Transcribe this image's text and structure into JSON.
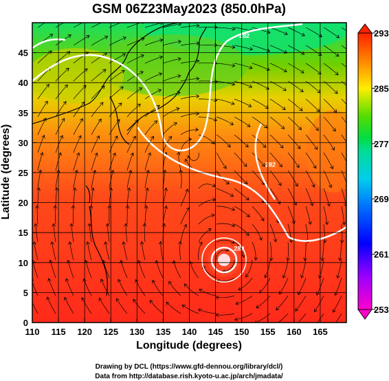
{
  "title": "GSM 06Z23May2023 (850.0hPa)",
  "map": {
    "xlabel": "Longitude (degrees)",
    "ylabel": "Latitude  (degrees)",
    "lon_range": [
      110,
      170
    ],
    "lat_range": [
      0,
      50
    ],
    "lon_ticks": [
      110,
      115,
      120,
      125,
      130,
      135,
      140,
      145,
      150,
      155,
      160,
      165
    ],
    "lat_ticks": [
      0,
      5,
      10,
      15,
      20,
      25,
      30,
      35,
      40,
      45
    ],
    "grid": true,
    "field": "850 hPa temperature (shaded) with streamlines and contours",
    "contour_labels": [
      {
        "text": "282",
        "lon": 150.5,
        "lat": 47.5
      },
      {
        "text": "282",
        "lon": 155.5,
        "lat": 26.0
      },
      {
        "text": "289",
        "lon": 149.5,
        "lat": 12.0
      }
    ],
    "colors": {
      "cold": "#cc00cc",
      "mid": "#00cc44",
      "warm": "#ff3322",
      "contour": "#ffffff",
      "streamline": "#000000"
    }
  },
  "colorbar": {
    "min": 253,
    "max": 293,
    "tick_labels": [
      "293",
      "285",
      "277",
      "269",
      "261",
      "253"
    ],
    "tick_values": [
      293,
      285,
      277,
      269,
      261,
      253
    ]
  },
  "credits": [
    "Drawing by DCL (https://www.gfd-dennou.org/library/dcl/)",
    "Data from http://database.rish.kyoto-u.ac.jp/arch/jmadata/"
  ]
}
